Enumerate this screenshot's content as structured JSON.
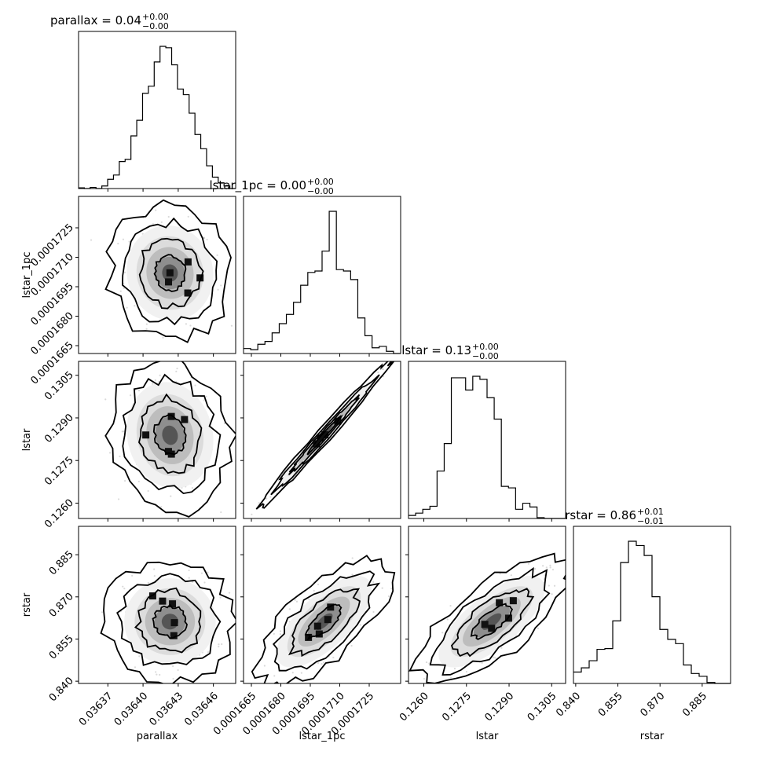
{
  "chart_data": {
    "type": "corner",
    "parameters": [
      {
        "name": "parallax",
        "title_main": "parallax = 0.04",
        "title_sup": "+0.00",
        "title_sub": "−0.00",
        "range": [
          0.036345,
          0.036479
        ],
        "ticks": [
          0.03637,
          0.0364,
          0.03643,
          0.03646
        ],
        "tick_labels": [
          "0.03637",
          "0.03640",
          "0.03643",
          "0.03646"
        ],
        "center": 0.036423,
        "sigma": 1.68e-05,
        "hist": [
          0.5,
          0,
          0.8,
          0,
          1.8,
          6.5,
          9.5,
          19,
          20.5,
          37,
          48,
          67,
          72,
          89,
          100,
          99,
          87,
          70,
          66,
          53,
          38,
          28,
          16,
          8,
          4,
          1.8,
          0
        ]
      },
      {
        "name": "lstar_1pc",
        "title_main": "lstar_1pc = 0.00",
        "title_sup": "+0.00",
        "title_sub": "−0.00",
        "range": [
          0.0001661,
          0.0001741
        ],
        "ticks": [
          0.0001665,
          0.000168,
          0.0001695,
          0.000171,
          0.0001725
        ],
        "tick_labels": [
          "0.0001665",
          "0.0001680",
          "0.0001695",
          "0.0001710",
          "0.0001725"
        ],
        "center": 0.0001702,
        "sigma": 1.1e-06,
        "hist": [
          3.5,
          2.7,
          6.5,
          8.5,
          14.5,
          21,
          27.5,
          36,
          48,
          57,
          58,
          72,
          100,
          59,
          58,
          52,
          25,
          12.5,
          4,
          5,
          1.5,
          0
        ]
      },
      {
        "name": "lstar",
        "title_main": "lstar = 0.13",
        "title_sup": "+0.00",
        "title_sub": "−0.00",
        "range": [
          0.12546,
          0.13099
        ],
        "ticks": [
          0.126,
          0.1275,
          0.129,
          0.1305
        ],
        "tick_labels": [
          "0.1260",
          "0.1275",
          "0.1290",
          "0.1305"
        ],
        "center": 0.12839,
        "sigma": 0.00085,
        "hist": [
          2,
          3.5,
          6,
          8,
          31,
          49,
          92,
          92,
          84,
          93,
          91,
          79,
          65,
          21,
          20,
          6,
          10,
          7.5,
          0.5,
          0,
          0,
          0
        ]
      },
      {
        "name": "rstar",
        "title_main": "rstar = 0.86",
        "title_sup": "+0.01",
        "title_sub": "−0.01",
        "range": [
          0.8392,
          0.8951
        ],
        "ticks": [
          0.84,
          0.855,
          0.87,
          0.885
        ],
        "tick_labels": [
          "0.840",
          "0.855",
          "0.870",
          "0.885"
        ],
        "center": 0.8612,
        "sigma": 0.0074,
        "hist": [
          8,
          11,
          16,
          24,
          24.5,
          44,
          85,
          100,
          97,
          90,
          61,
          38,
          31,
          28,
          13,
          7,
          5,
          0.7,
          0,
          0
        ]
      }
    ],
    "correlations": {
      "lstar_1pc|parallax": -0.05,
      "lstar|parallax": -0.1,
      "lstar|lstar_1pc": 0.99,
      "rstar|parallax": 0.0,
      "rstar|lstar_1pc": 0.7,
      "rstar|lstar": 0.72
    },
    "contour_levels_sigma": [
      0.5,
      1.0,
      1.5,
      2.0
    ],
    "grid": false,
    "legend": "none"
  }
}
